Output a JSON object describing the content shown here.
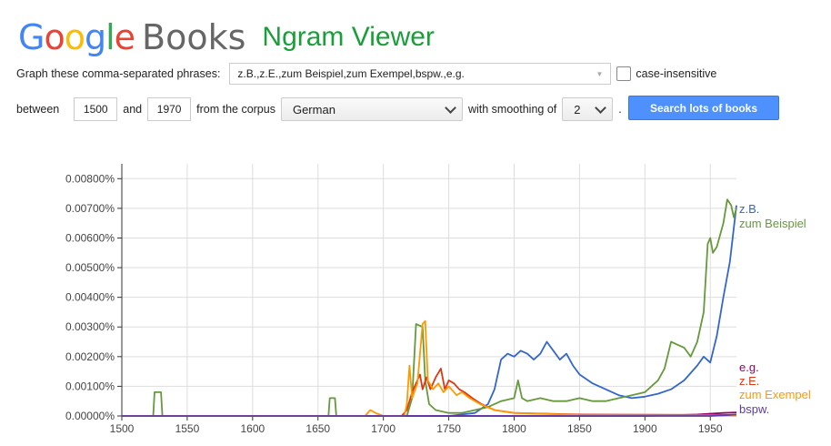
{
  "header": {
    "logo_google_letters": [
      {
        "ch": "G",
        "color": "#4285F4"
      },
      {
        "ch": "o",
        "color": "#EA4335"
      },
      {
        "ch": "o",
        "color": "#FBBC05"
      },
      {
        "ch": "g",
        "color": "#4285F4"
      },
      {
        "ch": "l",
        "color": "#34A853"
      },
      {
        "ch": "e",
        "color": "#EA4335"
      }
    ],
    "logo_books": "Books",
    "title": "Ngram Viewer"
  },
  "query": {
    "phrases_label": "Graph these comma-separated phrases:",
    "phrases_value": "z.B.,z.E.,zum Beispiel,zum Exempel,bspw.,e.g.",
    "case_insensitive_label": "case-insensitive",
    "case_insensitive_checked": false,
    "between_label": "between",
    "start_year": "1500",
    "and_label": "and",
    "end_year": "1970",
    "corpus_label": "from the corpus",
    "corpus_value": "German",
    "smoothing_label": "with smoothing of",
    "smoothing_value": "2",
    "period": ".",
    "search_button": "Search lots of books"
  },
  "chart_data": {
    "type": "line",
    "xlim": [
      1500,
      1970
    ],
    "ylim": [
      0,
      0.0085
    ],
    "x_ticks": [
      1500,
      1550,
      1600,
      1650,
      1700,
      1750,
      1800,
      1850,
      1900,
      1950
    ],
    "y_ticks": [
      "0.00000%",
      "0.00100%",
      "0.00200%",
      "0.00300%",
      "0.00400%",
      "0.00500%",
      "0.00600%",
      "0.00700%",
      "0.00800%"
    ],
    "y_tick_values": [
      0,
      0.001,
      0.002,
      0.003,
      0.004,
      0.005,
      0.006,
      0.007,
      0.008
    ],
    "grid": true,
    "series": [
      {
        "name": "z.B.",
        "color": "#3366cc",
        "points": [
          [
            1500,
            0
          ],
          [
            1750,
            0
          ],
          [
            1760,
            5e-05
          ],
          [
            1770,
            0.0001
          ],
          [
            1780,
            0.0004
          ],
          [
            1785,
            0.0009
          ],
          [
            1790,
            0.0019
          ],
          [
            1795,
            0.0021
          ],
          [
            1800,
            0.002
          ],
          [
            1805,
            0.0022
          ],
          [
            1810,
            0.0021
          ],
          [
            1815,
            0.0019
          ],
          [
            1820,
            0.0021
          ],
          [
            1825,
            0.0025
          ],
          [
            1830,
            0.0022
          ],
          [
            1835,
            0.0019
          ],
          [
            1840,
            0.0021
          ],
          [
            1845,
            0.0017
          ],
          [
            1850,
            0.0014
          ],
          [
            1860,
            0.0011
          ],
          [
            1870,
            0.0009
          ],
          [
            1880,
            0.0007
          ],
          [
            1890,
            0.0006
          ],
          [
            1900,
            0.00065
          ],
          [
            1910,
            0.00075
          ],
          [
            1920,
            0.0009
          ],
          [
            1930,
            0.0012
          ],
          [
            1940,
            0.0017
          ],
          [
            1945,
            0.002
          ],
          [
            1950,
            0.0018
          ],
          [
            1955,
            0.0027
          ],
          [
            1960,
            0.004
          ],
          [
            1965,
            0.0052
          ],
          [
            1970,
            0.0071
          ]
        ]
      },
      {
        "name": "zum Beispiel",
        "color": "#66993c",
        "points": [
          [
            1500,
            0
          ],
          [
            1524,
            0
          ],
          [
            1525,
            0.0008
          ],
          [
            1530,
            0.0008
          ],
          [
            1531,
            0
          ],
          [
            1658,
            0
          ],
          [
            1659,
            0.0006
          ],
          [
            1663,
            0.0006
          ],
          [
            1664,
            0
          ],
          [
            1718,
            0
          ],
          [
            1722,
            0.0006
          ],
          [
            1725,
            0.0031
          ],
          [
            1730,
            0.003
          ],
          [
            1732,
            0.0012
          ],
          [
            1735,
            0.0004
          ],
          [
            1740,
            0.0002
          ],
          [
            1750,
            0.0001
          ],
          [
            1760,
            0.0001
          ],
          [
            1770,
            0.0002
          ],
          [
            1780,
            0.0003
          ],
          [
            1790,
            0.0005
          ],
          [
            1800,
            0.0006
          ],
          [
            1803,
            0.0012
          ],
          [
            1806,
            0.0006
          ],
          [
            1810,
            0.0005
          ],
          [
            1820,
            0.0006
          ],
          [
            1830,
            0.0005
          ],
          [
            1840,
            0.0005
          ],
          [
            1850,
            0.0006
          ],
          [
            1860,
            0.0005
          ],
          [
            1870,
            0.0005
          ],
          [
            1880,
            0.0006
          ],
          [
            1890,
            0.0007
          ],
          [
            1900,
            0.0008
          ],
          [
            1910,
            0.0012
          ],
          [
            1915,
            0.0016
          ],
          [
            1920,
            0.0025
          ],
          [
            1925,
            0.0024
          ],
          [
            1930,
            0.0023
          ],
          [
            1935,
            0.002
          ],
          [
            1940,
            0.0025
          ],
          [
            1945,
            0.0035
          ],
          [
            1948,
            0.0058
          ],
          [
            1950,
            0.006
          ],
          [
            1952,
            0.0055
          ],
          [
            1955,
            0.0057
          ],
          [
            1960,
            0.0065
          ],
          [
            1963,
            0.0073
          ],
          [
            1966,
            0.0071
          ],
          [
            1968,
            0.0067
          ],
          [
            1970,
            0.007
          ]
        ]
      },
      {
        "name": "e.g.",
        "color": "#990066",
        "points": [
          [
            1500,
            0
          ],
          [
            1900,
            0
          ],
          [
            1920,
            2e-05
          ],
          [
            1940,
            5e-05
          ],
          [
            1960,
            0.0001
          ],
          [
            1970,
            0.00012
          ]
        ]
      },
      {
        "name": "z.E.",
        "color": "#dc3912",
        "points": [
          [
            1500,
            0
          ],
          [
            1714,
            0
          ],
          [
            1718,
            0.0002
          ],
          [
            1722,
            0.0008
          ],
          [
            1725,
            0.0011
          ],
          [
            1728,
            0.0014
          ],
          [
            1730,
            0.0009
          ],
          [
            1733,
            0.0013
          ],
          [
            1736,
            0.0009
          ],
          [
            1740,
            0.0013
          ],
          [
            1744,
            0.0016
          ],
          [
            1747,
            0.0009
          ],
          [
            1750,
            0.0012
          ],
          [
            1754,
            0.0011
          ],
          [
            1758,
            0.0009
          ],
          [
            1762,
            0.0008
          ],
          [
            1768,
            0.0006
          ],
          [
            1775,
            0.0004
          ],
          [
            1785,
            0.0002
          ],
          [
            1800,
            0.0001
          ],
          [
            1850,
            5e-05
          ],
          [
            1970,
            3e-05
          ]
        ]
      },
      {
        "name": "zum Exempel",
        "color": "#ff9900",
        "points": [
          [
            1500,
            0
          ],
          [
            1686,
            0
          ],
          [
            1690,
            0.0002
          ],
          [
            1694,
            0.0001
          ],
          [
            1700,
            0
          ],
          [
            1716,
            0
          ],
          [
            1718,
            0.0004
          ],
          [
            1720,
            0.0017
          ],
          [
            1722,
            0.0006
          ],
          [
            1726,
            0.0011
          ],
          [
            1730,
            0.0031
          ],
          [
            1732,
            0.0032
          ],
          [
            1734,
            0.0012
          ],
          [
            1738,
            0.0009
          ],
          [
            1742,
            0.0011
          ],
          [
            1746,
            0.0008
          ],
          [
            1750,
            0.001
          ],
          [
            1756,
            0.0007
          ],
          [
            1760,
            0.0008
          ],
          [
            1766,
            0.0006
          ],
          [
            1774,
            0.0004
          ],
          [
            1785,
            0.0002
          ],
          [
            1800,
            0.0001
          ],
          [
            1850,
            3e-05
          ],
          [
            1970,
            1e-05
          ]
        ]
      },
      {
        "name": "bspw.",
        "color": "#5c3aa8",
        "points": [
          [
            1500,
            0
          ],
          [
            1950,
            0
          ],
          [
            1960,
            2e-05
          ],
          [
            1970,
            5e-05
          ]
        ]
      }
    ],
    "legend_order": [
      "z.B.",
      "zum Beispiel",
      "e.g.",
      "z.E.",
      "zum Exempel",
      "bspw."
    ],
    "legend_colors": [
      "#3366cc",
      "#66993c",
      "#990066",
      "#dc3912",
      "#ff9900",
      "#5c3aa8"
    ],
    "legend_placement": "right"
  }
}
